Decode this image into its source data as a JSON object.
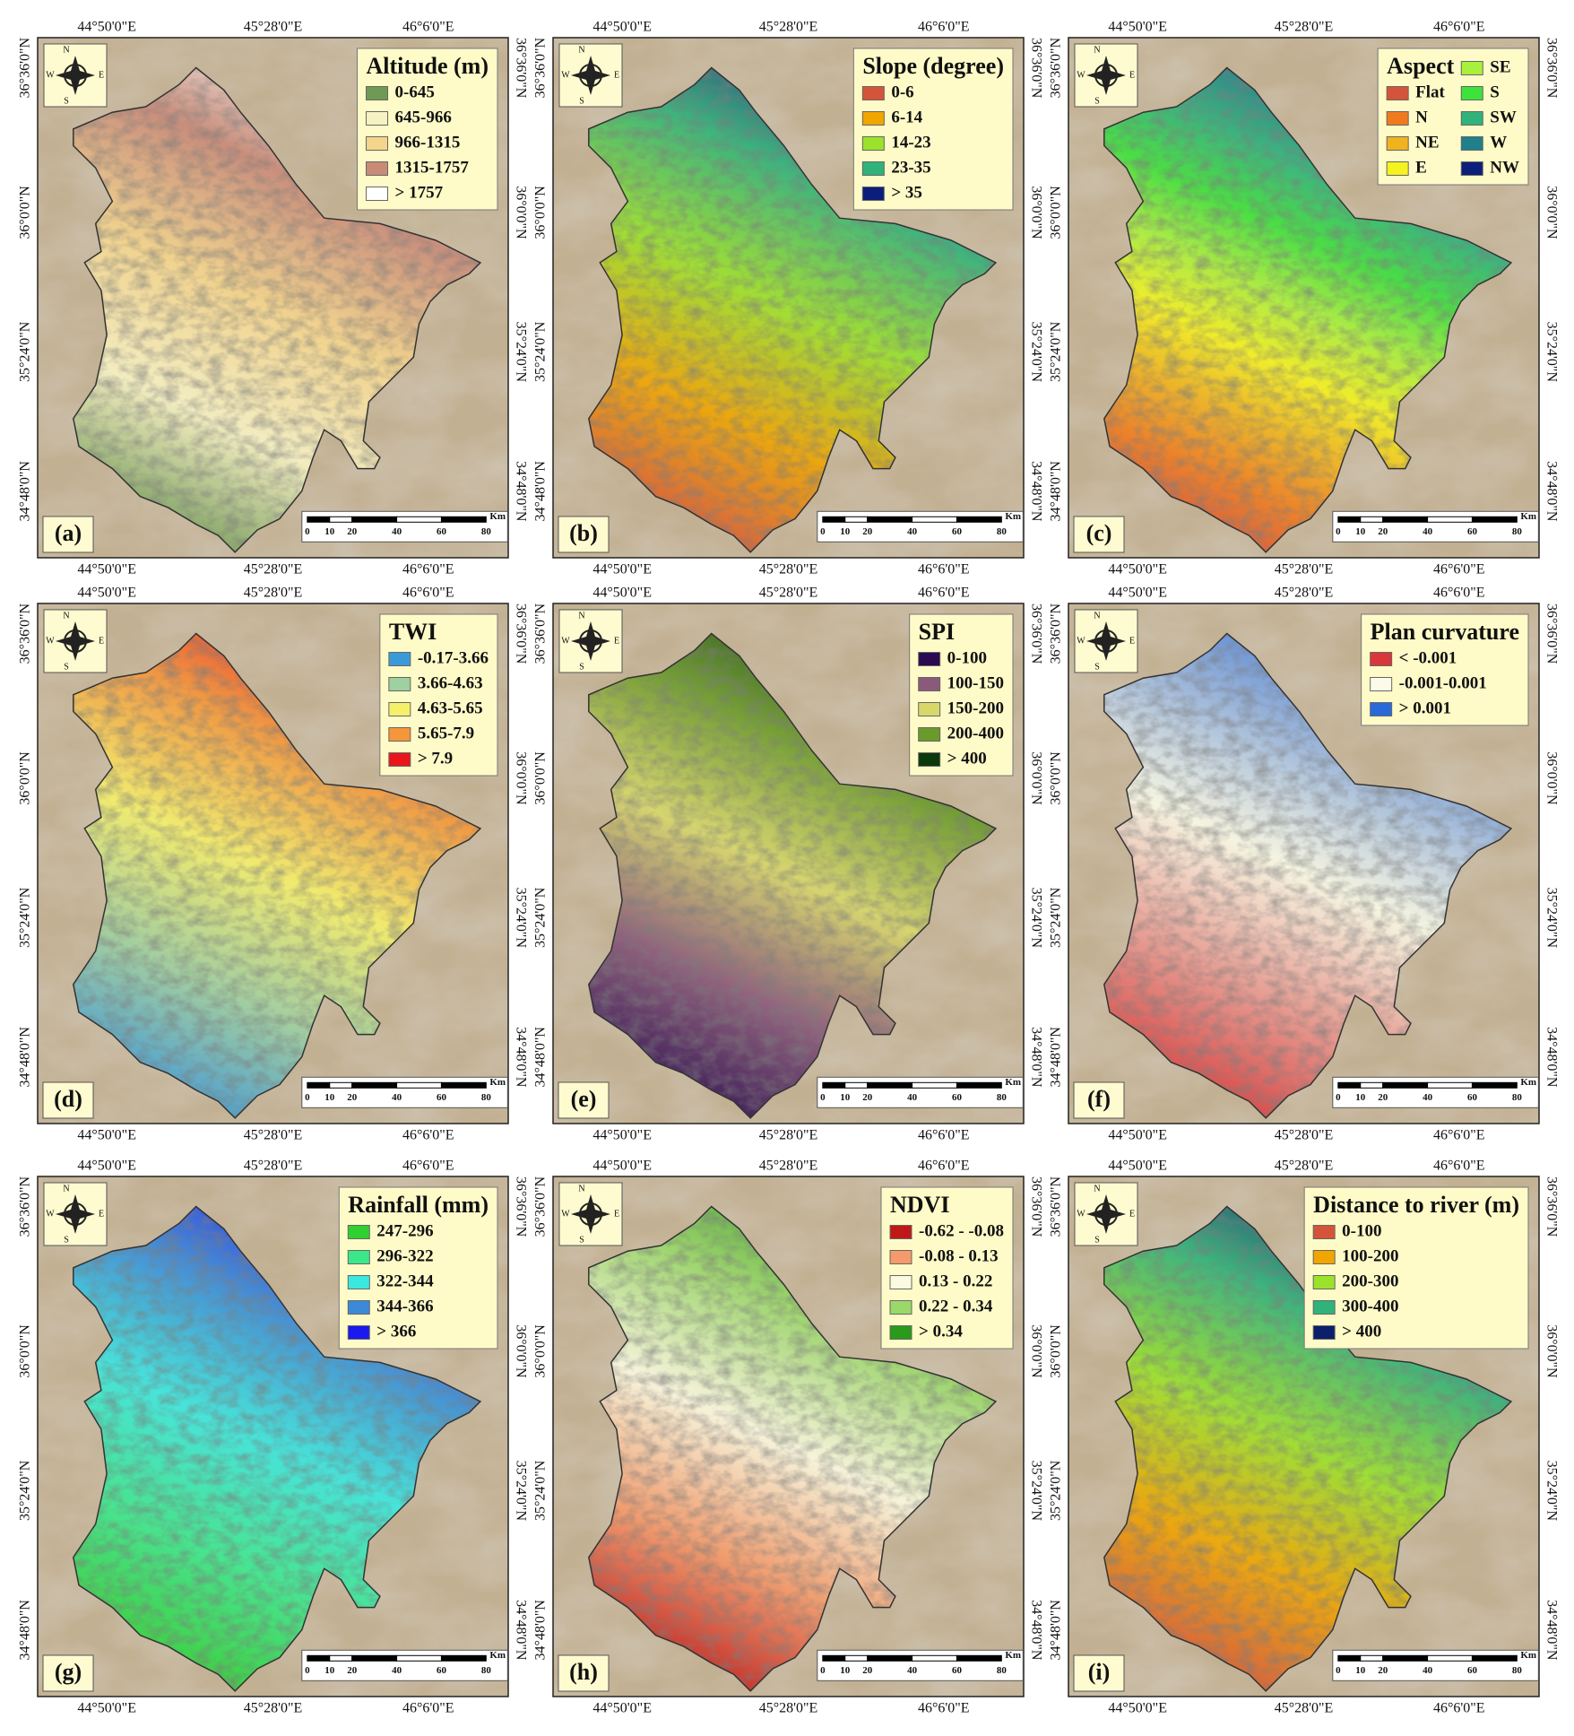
{
  "panels": [
    {
      "label": "(a)",
      "legend_title": "Altitude (m)",
      "legend": [
        {
          "label": "0-645",
          "color": "#6f9a55"
        },
        {
          "label": "645-966",
          "color": "#f7f2c4"
        },
        {
          "label": "966-1315",
          "color": "#f5d58c"
        },
        {
          "label": "1315-1757",
          "color": "#c98a78"
        },
        {
          "label": "> 1757",
          "color": "#ffffff"
        }
      ]
    },
    {
      "label": "(b)",
      "legend_title": "Slope (degree)",
      "legend": [
        {
          "label": "0-6",
          "color": "#d4543a"
        },
        {
          "label": "6-14",
          "color": "#f0a500"
        },
        {
          "label": "14-23",
          "color": "#9be22b"
        },
        {
          "label": "23-35",
          "color": "#2fb37a"
        },
        {
          "label": "> 35",
          "color": "#0b1f7a"
        }
      ]
    },
    {
      "label": "(c)",
      "legend_title": "Aspect",
      "legend": [
        {
          "label": "Flat",
          "color": "#d4543a"
        },
        {
          "label": "N",
          "color": "#f07b1e"
        },
        {
          "label": "NE",
          "color": "#f0b21e"
        },
        {
          "label": "E",
          "color": "#f5f21e"
        },
        {
          "label": "SE",
          "color": "#a8f03c"
        },
        {
          "label": "S",
          "color": "#3de23c"
        },
        {
          "label": "SW",
          "color": "#2fb37a"
        },
        {
          "label": "W",
          "color": "#1f7f8a"
        },
        {
          "label": "NW",
          "color": "#0b1f7a"
        }
      ]
    },
    {
      "label": "(d)",
      "legend_title": "TWI",
      "legend": [
        {
          "label": "-0.17-3.66",
          "color": "#3a9ad9"
        },
        {
          "label": "3.66-4.63",
          "color": "#9fd0a0"
        },
        {
          "label": "4.63-5.65",
          "color": "#f5f06a"
        },
        {
          "label": "5.65-7.9",
          "color": "#f5963a"
        },
        {
          "label": "> 7.9",
          "color": "#e8161a"
        }
      ]
    },
    {
      "label": "(e)",
      "legend_title": "SPI",
      "legend": [
        {
          "label": "0-100",
          "color": "#2b0a4f"
        },
        {
          "label": "100-150",
          "color": "#8a5a7a"
        },
        {
          "label": "150-200",
          "color": "#d8d86a"
        },
        {
          "label": "200-400",
          "color": "#6a9a2a"
        },
        {
          "label": "> 400",
          "color": "#0a3a0a"
        }
      ]
    },
    {
      "label": "(f)",
      "legend_title": "Plan curvature",
      "legend": [
        {
          "label": "< -0.001",
          "color": "#d8383a"
        },
        {
          "label": "-0.001-0.001",
          "color": "#fbfbe8"
        },
        {
          "label": "> 0.001",
          "color": "#2a6ad8"
        }
      ]
    },
    {
      "label": "(g)",
      "legend_title": "Rainfall (mm)",
      "legend": [
        {
          "label": "247-296",
          "color": "#2fd02f"
        },
        {
          "label": "296-322",
          "color": "#3ae88a"
        },
        {
          "label": "322-344",
          "color": "#3ae8e0"
        },
        {
          "label": "344-366",
          "color": "#3a8ad8"
        },
        {
          "label": "> 366",
          "color": "#1a1aee"
        }
      ]
    },
    {
      "label": "(h)",
      "legend_title": "NDVI",
      "legend": [
        {
          "label": "-0.62 - -0.08",
          "color": "#c01818"
        },
        {
          "label": "-0.08 - 0.13",
          "color": "#f59a6a"
        },
        {
          "label": "0.13 - 0.22",
          "color": "#fbf9e0"
        },
        {
          "label": "0.22 - 0.34",
          "color": "#9ad86a"
        },
        {
          "label": "> 0.34",
          "color": "#2a9a1a"
        }
      ]
    },
    {
      "label": "(i)",
      "legend_title": "Distance to river (m)",
      "legend": [
        {
          "label": "0-100",
          "color": "#d4543a"
        },
        {
          "label": "100-200",
          "color": "#f0a500"
        },
        {
          "label": "200-300",
          "color": "#9be22b"
        },
        {
          "label": "300-400",
          "color": "#2fb37a"
        },
        {
          "label": "> 400",
          "color": "#0b1f6a"
        }
      ]
    }
  ],
  "coordinates": {
    "lon": [
      "44°50'0\"E",
      "45°28'0\"E",
      "46°6'0\"E"
    ],
    "lat": [
      "36°36'0\"N",
      "36°0'0\"N",
      "35°24'0\"N",
      "34°48'0\"N"
    ]
  },
  "compass": {
    "n": "N",
    "e": "E",
    "s": "S",
    "w": "W"
  },
  "scale_bar": {
    "ticks": [
      0,
      10,
      20,
      40,
      60,
      80
    ],
    "unit": "Km"
  }
}
